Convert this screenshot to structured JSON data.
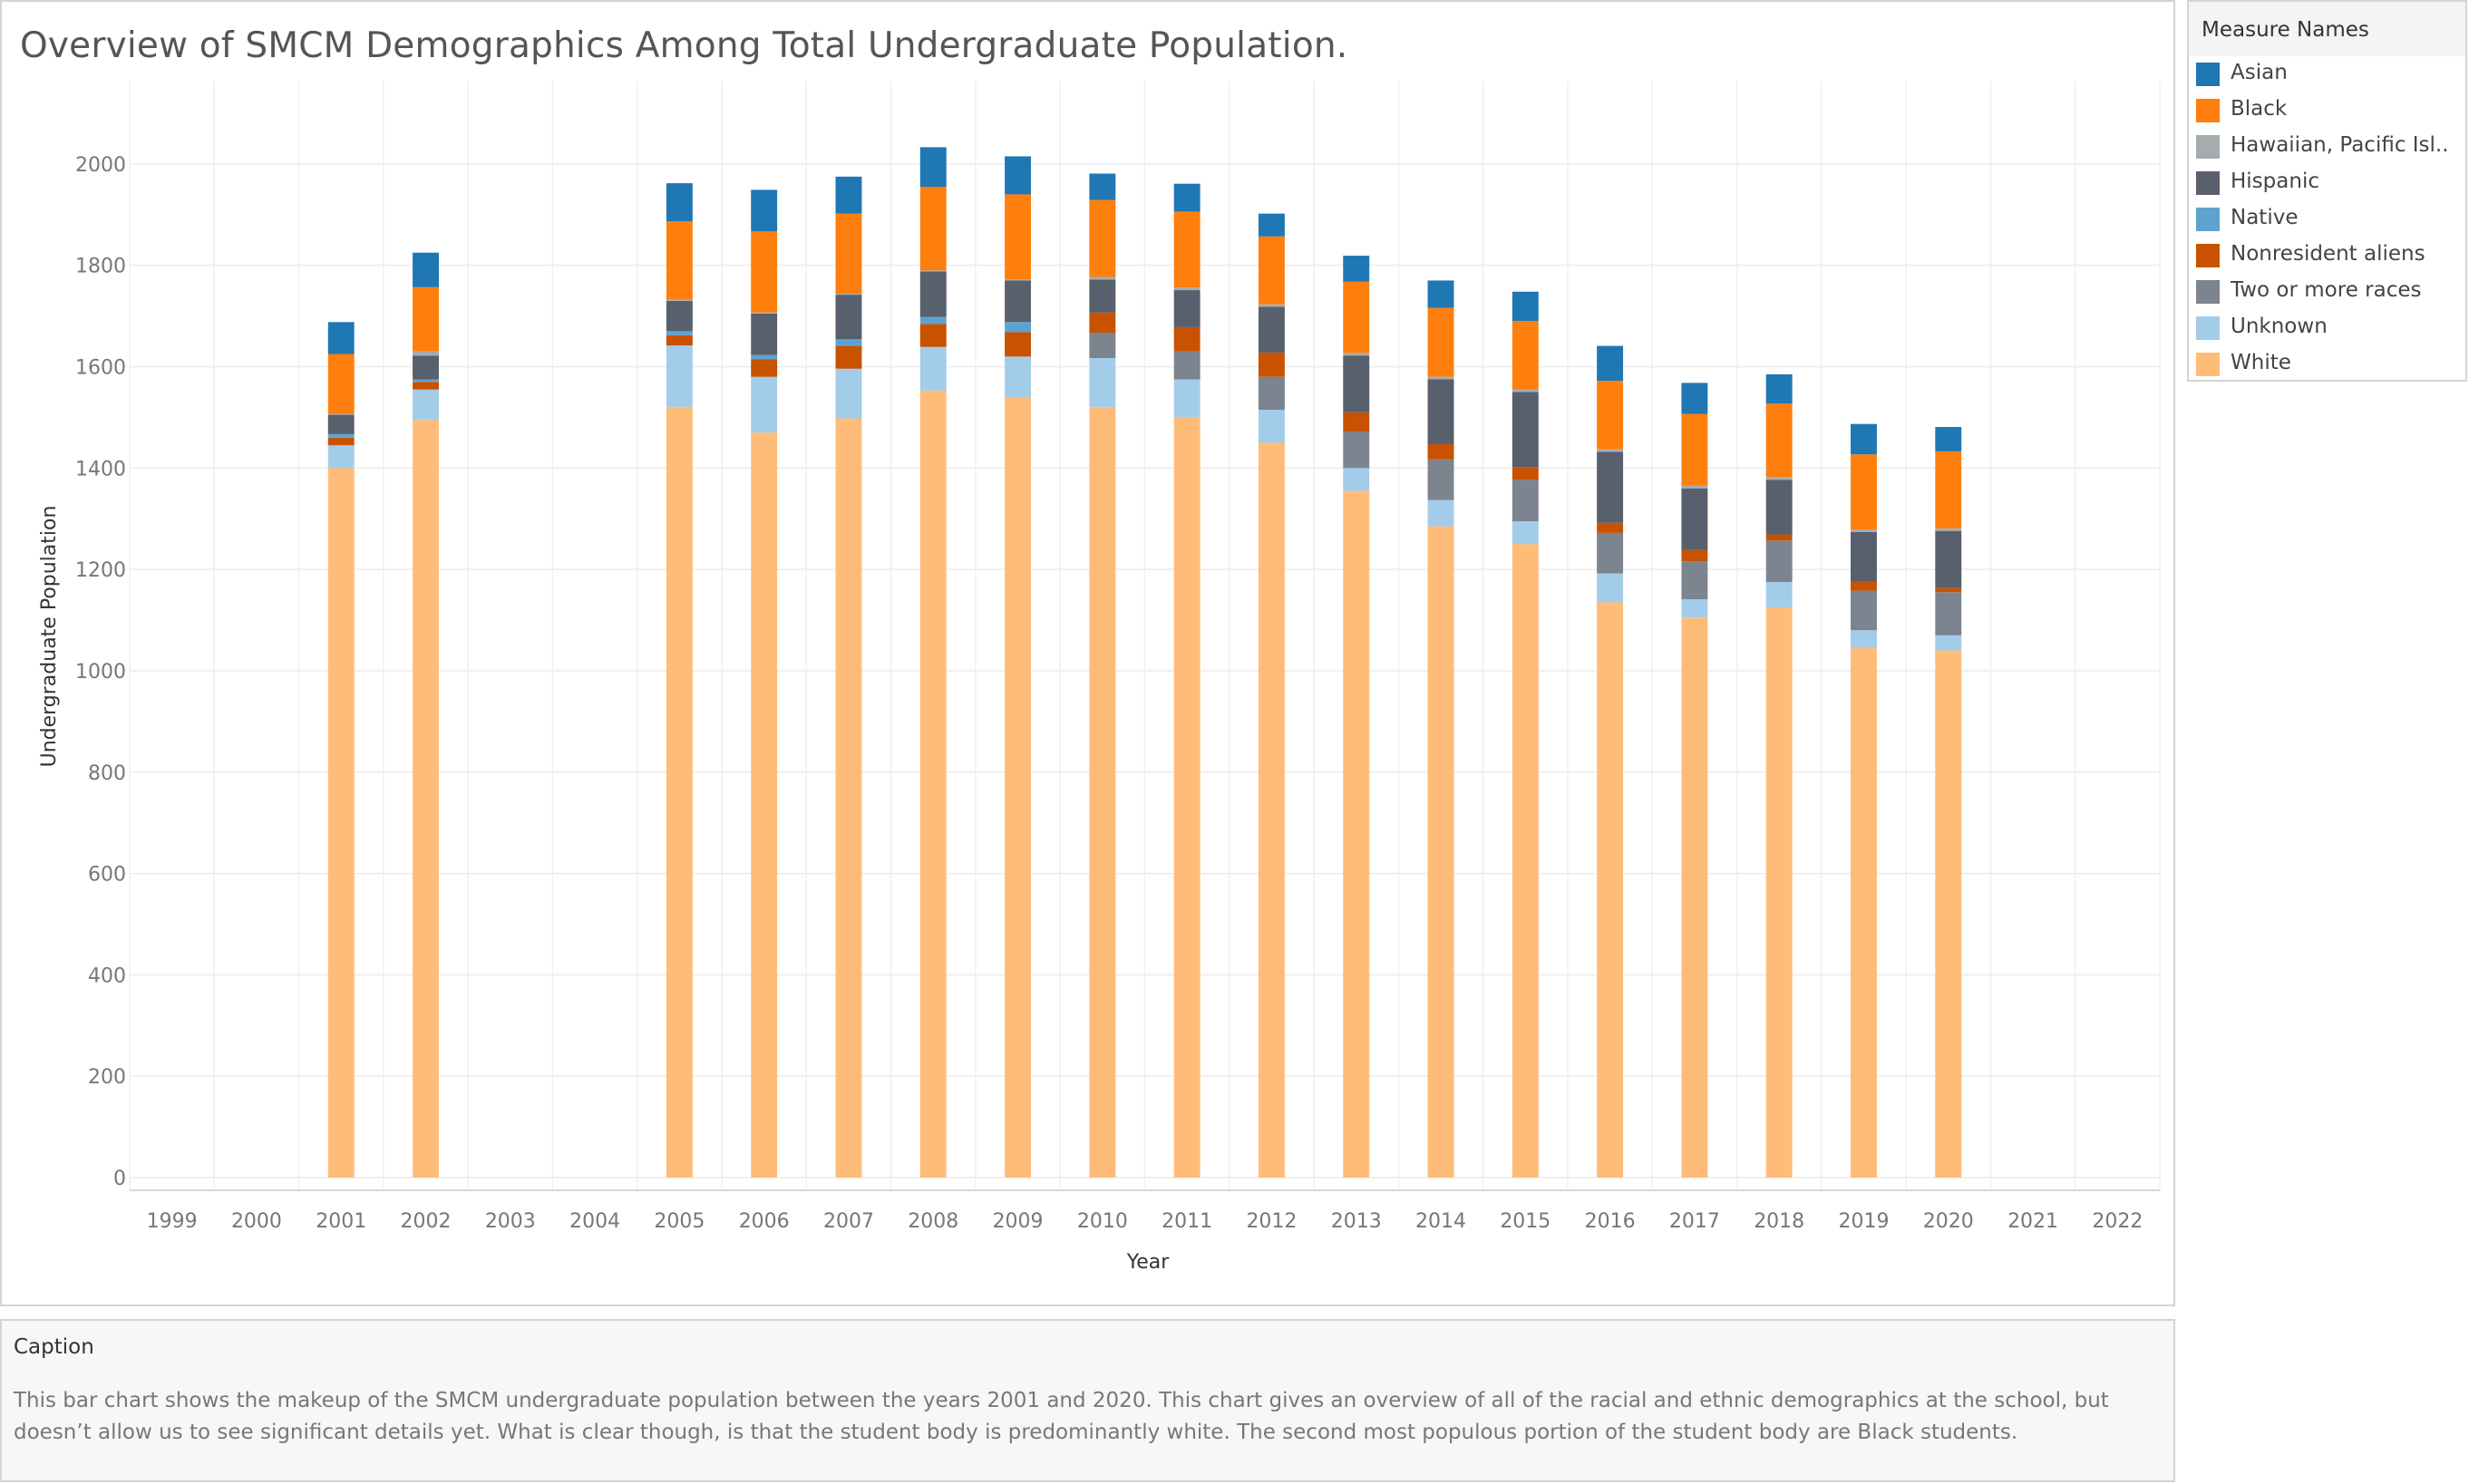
{
  "title": "Overview of SMCM Demographics Among Total Undergraduate Population.",
  "legend": {
    "title": "Measure Names",
    "items": [
      {
        "label": "Asian",
        "color": "#1f77b4"
      },
      {
        "label": "Black",
        "color": "#ff7f0e"
      },
      {
        "label": "Hawaiian, Pacific Isl..",
        "color": "#a5acaf"
      },
      {
        "label": "Hispanic",
        "color": "#57606c"
      },
      {
        "label": "Native",
        "color": "#5fa2ce"
      },
      {
        "label": "Nonresident aliens",
        "color": "#c85200"
      },
      {
        "label": "Two or more races",
        "color": "#7b848f"
      },
      {
        "label": "Unknown",
        "color": "#a3cce9"
      },
      {
        "label": "White",
        "color": "#ffbc79"
      }
    ]
  },
  "caption": {
    "title": "Caption",
    "text": "This bar chart shows the makeup of the SMCM undergraduate population between the years 2001 and 2020.  This chart gives an overview of all of the racial and ethnic demographics at the school, but doesn’t allow us to see significant details yet. What is clear though, is that the student body is predominantly white. The second most populous portion of the student body are Black students."
  },
  "chart_data": {
    "type": "bar",
    "stacked": true,
    "xlabel": "Year",
    "ylabel": "Undergraduate Population",
    "x_ticks": [
      1999,
      2000,
      2001,
      2002,
      2003,
      2004,
      2005,
      2006,
      2007,
      2008,
      2009,
      2010,
      2011,
      2012,
      2013,
      2014,
      2015,
      2016,
      2017,
      2018,
      2019,
      2020,
      2021,
      2022
    ],
    "y_ticks": [
      0,
      200,
      400,
      600,
      800,
      1000,
      1200,
      1400,
      1600,
      1800,
      2000
    ],
    "ylim": [
      -25,
      2150
    ],
    "grid": true,
    "legend_position": "right",
    "categories": [
      2001,
      2002,
      2005,
      2006,
      2007,
      2008,
      2009,
      2010,
      2011,
      2012,
      2013,
      2014,
      2015,
      2016,
      2017,
      2018,
      2019,
      2020
    ],
    "stack_order_bottom_to_top": [
      "White",
      "Unknown",
      "Two or more races",
      "Nonresident aliens",
      "Native",
      "Hispanic",
      "Hawaiian, Pacific Isl..",
      "Black",
      "Asian"
    ],
    "series": [
      {
        "name": "White",
        "values": [
          1400,
          1495,
          1520,
          1470,
          1498,
          1553,
          1540,
          1520,
          1500,
          1450,
          1355,
          1285,
          1250,
          1135,
          1105,
          1125,
          1045,
          1040
        ]
      },
      {
        "name": "Unknown",
        "values": [
          45,
          60,
          122,
          110,
          98,
          86,
          80,
          97,
          75,
          65,
          45,
          52,
          45,
          57,
          36,
          50,
          35,
          30
        ]
      },
      {
        "name": "Two or more races",
        "values": [
          0,
          0,
          0,
          0,
          0,
          0,
          0,
          50,
          55,
          65,
          72,
          80,
          82,
          80,
          75,
          82,
          78,
          85
        ]
      },
      {
        "name": "Nonresident aliens",
        "values": [
          15,
          15,
          20,
          35,
          45,
          45,
          48,
          40,
          48,
          48,
          38,
          30,
          25,
          20,
          22,
          12,
          18,
          8
        ]
      },
      {
        "name": "Native",
        "values": [
          7,
          5,
          8,
          8,
          13,
          14,
          20,
          0,
          0,
          0,
          0,
          0,
          0,
          0,
          0,
          0,
          0,
          0
        ]
      },
      {
        "name": "Hispanic",
        "values": [
          38,
          47,
          60,
          82,
          88,
          90,
          82,
          65,
          73,
          90,
          112,
          128,
          148,
          140,
          122,
          108,
          98,
          113
        ]
      },
      {
        "name": "Hawaiian, Pacific Isl..",
        "values": [
          2,
          8,
          2,
          2,
          2,
          2,
          2,
          5,
          5,
          5,
          5,
          5,
          5,
          5,
          5,
          5,
          5,
          5
        ]
      },
      {
        "name": "Black",
        "values": [
          118,
          127,
          155,
          160,
          158,
          165,
          168,
          152,
          150,
          134,
          141,
          136,
          135,
          135,
          142,
          145,
          148,
          152
        ]
      },
      {
        "name": "Asian",
        "values": [
          63,
          68,
          75,
          82,
          73,
          78,
          75,
          52,
          55,
          45,
          51,
          54,
          58,
          69,
          61,
          58,
          60,
          48
        ]
      }
    ]
  }
}
